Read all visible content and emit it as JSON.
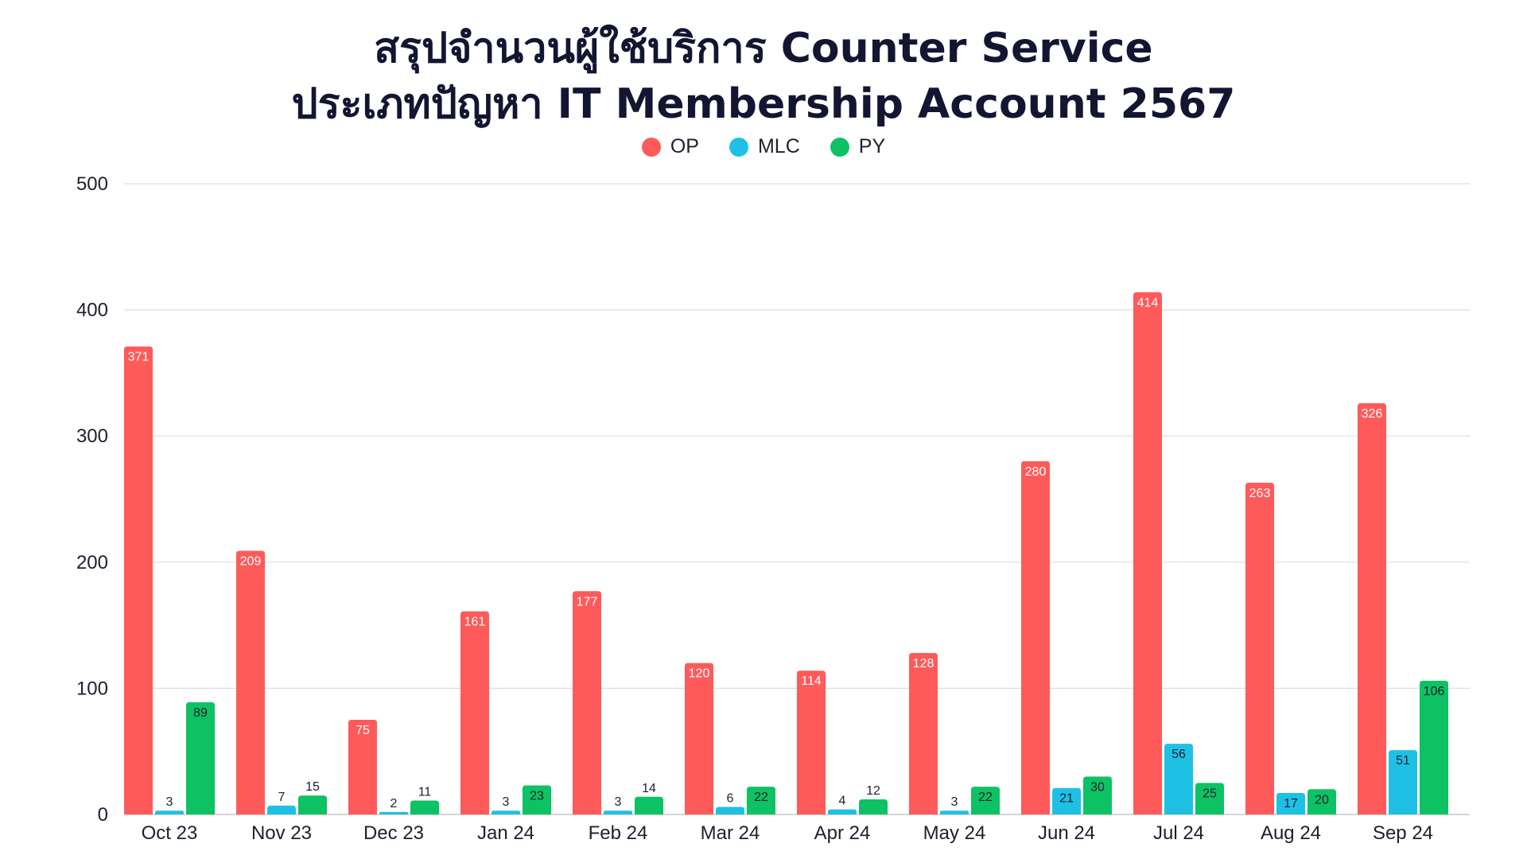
{
  "chart_data": {
    "type": "bar",
    "title": "สรุปจำนวนผู้ใช้บริการ Counter Service",
    "subtitle": "ประเภทปัญหา IT Membership Account 2567",
    "categories": [
      "Oct 23",
      "Nov 23",
      "Dec 23",
      "Jan 24",
      "Feb 24",
      "Mar 24",
      "Apr 24",
      "May 24",
      "Jun 24",
      "Jul 24",
      "Aug 24",
      "Sep 24"
    ],
    "series": [
      {
        "name": "OP",
        "color": "#ff5a5a",
        "values": [
          371,
          209,
          75,
          161,
          177,
          120,
          114,
          128,
          280,
          414,
          263,
          326
        ]
      },
      {
        "name": "MLC",
        "color": "#1ec1e4",
        "values": [
          3,
          7,
          2,
          3,
          3,
          6,
          4,
          3,
          21,
          56,
          17,
          51
        ]
      },
      {
        "name": "PY",
        "color": "#0dc263",
        "values": [
          89,
          15,
          11,
          23,
          14,
          22,
          12,
          22,
          30,
          25,
          20,
          106
        ]
      }
    ],
    "ylim": [
      0,
      500
    ],
    "yticks": [
      0,
      100,
      200,
      300,
      400,
      500
    ],
    "grid": true,
    "legend": "top-center",
    "data_labels": true
  }
}
